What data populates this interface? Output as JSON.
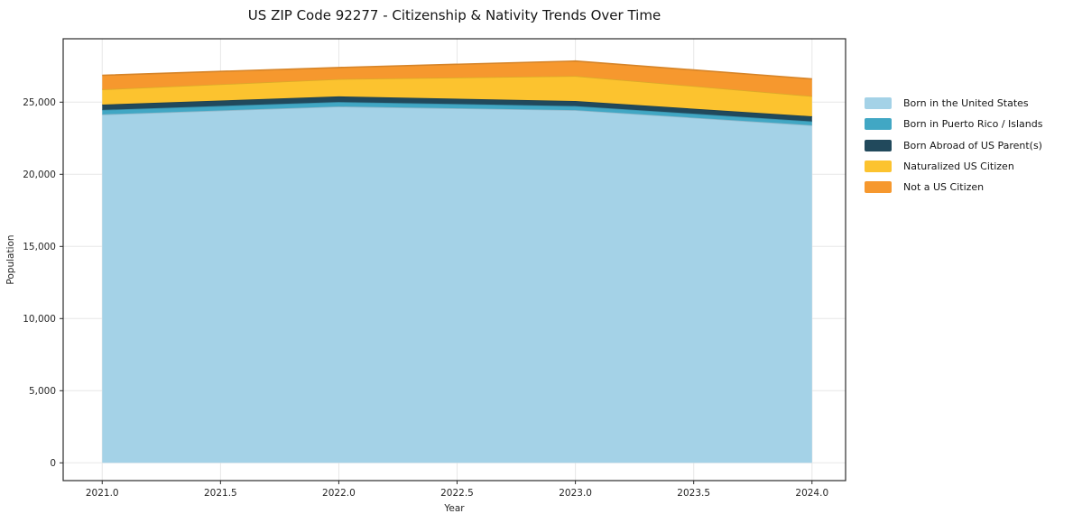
{
  "title": "US ZIP Code 92277 - Citizenship & Nativity Trends Over Time",
  "chart_data": {
    "type": "area",
    "stacked": true,
    "title": "US ZIP Code 92277 - Citizenship & Nativity Trends Over Time",
    "xlabel": "Year",
    "ylabel": "Population",
    "x": [
      2021,
      2022,
      2023,
      2024
    ],
    "series": [
      {
        "name": "Born in the United States",
        "color": "#a4d2e7",
        "values": [
          24150,
          24700,
          24450,
          23400
        ]
      },
      {
        "name": "Born in Puerto Rico / Islands",
        "color": "#41a7c4",
        "values": [
          310,
          310,
          280,
          270
        ]
      },
      {
        "name": "Born Abroad of US Parent(s)",
        "color": "#21495c",
        "values": [
          370,
          390,
          350,
          350
        ]
      },
      {
        "name": "Naturalized US Citizen",
        "color": "#fcc32f",
        "values": [
          1050,
          1200,
          1730,
          1400
        ]
      },
      {
        "name": "Not a US Citizen",
        "color": "#f6982e",
        "values": [
          980,
          800,
          1040,
          1190
        ]
      }
    ],
    "totals": [
      26860,
      27400,
      27850,
      26610
    ],
    "x_ticks": [
      "2021.0",
      "2021.5",
      "2022.0",
      "2022.5",
      "2023.0",
      "2023.5",
      "2024.0"
    ],
    "x_tick_values": [
      2021,
      2021.5,
      2022,
      2022.5,
      2023,
      2023.5,
      2024
    ],
    "y_ticks": [
      "0",
      "5,000",
      "10,000",
      "15,000",
      "20,000",
      "25,000"
    ],
    "y_tick_values": [
      0,
      5000,
      10000,
      15000,
      20000,
      25000
    ],
    "xlim": [
      2020.835,
      2024.142
    ],
    "ylim": [
      -1231,
      29394
    ],
    "grid": true,
    "grid_color": "#e7e7e7",
    "frame_color": "#2b2b2b",
    "legend_position": "right-outside"
  }
}
